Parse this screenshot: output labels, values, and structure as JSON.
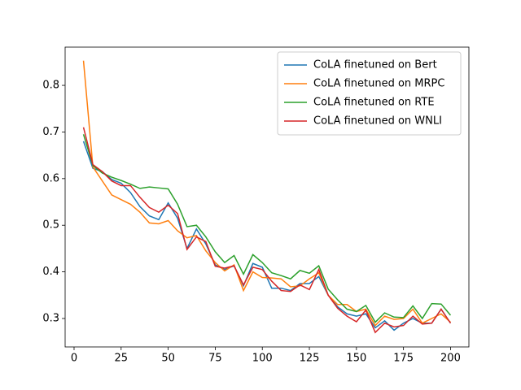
{
  "chart_data": {
    "type": "line",
    "x": [
      5,
      10,
      15,
      20,
      25,
      30,
      35,
      40,
      45,
      50,
      55,
      60,
      65,
      70,
      75,
      80,
      85,
      90,
      95,
      100,
      105,
      110,
      115,
      120,
      125,
      130,
      135,
      140,
      145,
      150,
      155,
      160,
      165,
      170,
      175,
      180,
      185,
      190,
      195,
      200
    ],
    "series": [
      {
        "name": "CoLA finetuned on Bert",
        "color": "#1f77b4",
        "values": [
          0.68,
          0.622,
          0.615,
          0.598,
          0.59,
          0.57,
          0.54,
          0.52,
          0.512,
          0.548,
          0.515,
          0.45,
          0.492,
          0.46,
          0.415,
          0.405,
          0.413,
          0.37,
          0.418,
          0.41,
          0.365,
          0.365,
          0.36,
          0.375,
          0.375,
          0.39,
          0.35,
          0.325,
          0.31,
          0.305,
          0.31,
          0.28,
          0.295,
          0.275,
          0.29,
          0.3,
          0.29,
          0.29,
          0.32,
          0.29
        ]
      },
      {
        "name": "CoLA finetuned on MRPC",
        "color": "#ff7f0e",
        "values": [
          0.853,
          0.625,
          0.595,
          0.565,
          0.555,
          0.545,
          0.528,
          0.505,
          0.503,
          0.51,
          0.488,
          0.473,
          0.478,
          0.445,
          0.42,
          0.402,
          0.415,
          0.36,
          0.4,
          0.388,
          0.387,
          0.385,
          0.368,
          0.37,
          0.385,
          0.398,
          0.35,
          0.33,
          0.33,
          0.315,
          0.32,
          0.285,
          0.305,
          0.298,
          0.3,
          0.32,
          0.29,
          0.3,
          0.31,
          0.292
        ]
      },
      {
        "name": "CoLA finetuned on RTE",
        "color": "#2ca02c",
        "values": [
          0.695,
          0.628,
          0.612,
          0.603,
          0.596,
          0.588,
          0.579,
          0.582,
          0.58,
          0.578,
          0.545,
          0.497,
          0.5,
          0.475,
          0.443,
          0.42,
          0.435,
          0.395,
          0.437,
          0.42,
          0.398,
          0.392,
          0.385,
          0.403,
          0.397,
          0.413,
          0.363,
          0.34,
          0.32,
          0.315,
          0.328,
          0.292,
          0.312,
          0.303,
          0.302,
          0.327,
          0.3,
          0.332,
          0.331,
          0.307
        ]
      },
      {
        "name": "CoLA finetuned on WNLI",
        "color": "#d62728",
        "values": [
          0.71,
          0.63,
          0.615,
          0.595,
          0.585,
          0.585,
          0.56,
          0.538,
          0.528,
          0.543,
          0.525,
          0.448,
          0.475,
          0.465,
          0.412,
          0.408,
          0.413,
          0.372,
          0.41,
          0.405,
          0.38,
          0.36,
          0.358,
          0.372,
          0.362,
          0.405,
          0.35,
          0.322,
          0.305,
          0.293,
          0.318,
          0.27,
          0.29,
          0.282,
          0.285,
          0.305,
          0.288,
          0.29,
          0.32,
          0.29
        ]
      }
    ],
    "xlim": [
      -4.75,
      209.75
    ],
    "xticks": [
      0,
      25,
      50,
      75,
      100,
      125,
      150,
      175,
      200
    ],
    "ylim": [
      0.239,
      0.882
    ],
    "yticks": [
      0.3,
      0.4,
      0.5,
      0.6,
      0.7,
      0.8
    ],
    "legend": "upper right"
  }
}
